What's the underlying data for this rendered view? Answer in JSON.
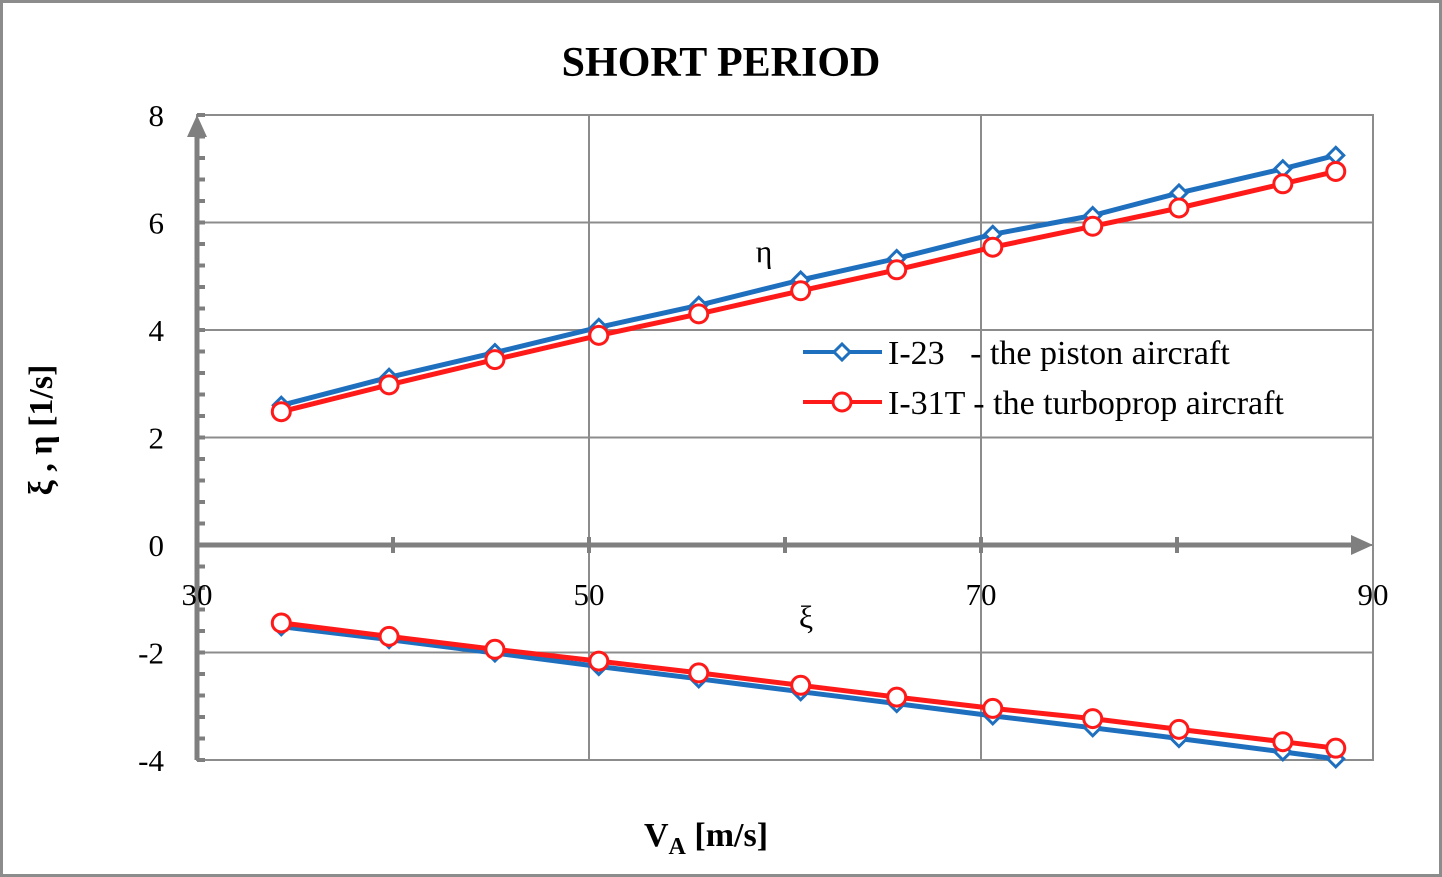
{
  "chart_data": {
    "type": "line",
    "title": "SHORT PERIOD",
    "xlabel_main": "V",
    "xlabel_sub": "A",
    "xlabel_unit": " [m/s]",
    "ylabel": "ξ , η [1/s]",
    "xlim": [
      30,
      90
    ],
    "ylim": [
      -4,
      8
    ],
    "x_ticks": [
      30,
      50,
      70,
      90
    ],
    "y_ticks": [
      -4,
      -2,
      0,
      2,
      4,
      6,
      8
    ],
    "grid": true,
    "legend_position": "center-right",
    "annotations": {
      "eta": "η",
      "xi": "ξ"
    },
    "x": [
      34.3,
      39.8,
      45.2,
      50.5,
      55.6,
      60.8,
      65.7,
      70.6,
      75.7,
      80.1,
      85.4,
      88.1
    ],
    "series": [
      {
        "name": "I-23   - the piston aircraft",
        "color": "#1f6fbf",
        "marker": "diamond",
        "eta": [
          2.6,
          3.12,
          3.58,
          4.05,
          4.46,
          4.93,
          5.33,
          5.78,
          6.13,
          6.55,
          7.0,
          7.25
        ],
        "xi": [
          -1.52,
          -1.76,
          -2.01,
          -2.26,
          -2.49,
          -2.73,
          -2.95,
          -3.18,
          -3.4,
          -3.6,
          -3.85,
          -3.98
        ]
      },
      {
        "name": "I-31T - the turboprop aircraft",
        "color": "#ff1a1a",
        "marker": "circle",
        "eta": [
          2.48,
          2.98,
          3.45,
          3.9,
          4.3,
          4.73,
          5.12,
          5.54,
          5.93,
          6.27,
          6.72,
          6.95
        ],
        "xi": [
          -1.45,
          -1.7,
          -1.94,
          -2.16,
          -2.38,
          -2.61,
          -2.83,
          -3.04,
          -3.23,
          -3.43,
          -3.66,
          -3.78
        ]
      }
    ]
  }
}
